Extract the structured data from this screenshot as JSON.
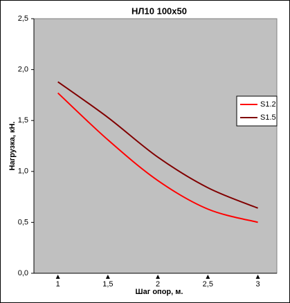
{
  "chart_data": {
    "type": "line",
    "title": "НЛ10 100x50",
    "x_label": "Шаг опор, м.",
    "y_label": "Нагрузка, кН.",
    "x": [
      1,
      1.5,
      2,
      2.5,
      3
    ],
    "series": [
      {
        "name": "S1.2",
        "color": "#ff0000",
        "values": [
          1.77,
          1.31,
          0.91,
          0.63,
          0.5
        ]
      },
      {
        "name": "S1.5",
        "color": "#800000",
        "values": [
          1.88,
          1.53,
          1.14,
          0.84,
          0.64
        ]
      }
    ],
    "xlim": [
      0.76,
      3.19
    ],
    "xticks": [
      1,
      {
        "value": 1.5,
        "label": "1,5"
      },
      2,
      {
        "value": 2.5,
        "label": "2,5"
      },
      3
    ],
    "ylim": [
      0,
      2.5
    ],
    "yticks": [
      {
        "value": 0,
        "label": "0,0"
      },
      {
        "value": 0.5,
        "label": "0,5"
      },
      {
        "value": 1,
        "label": "1,0"
      },
      {
        "value": 1.5,
        "label": "1,5"
      },
      {
        "value": 2,
        "label": "2,0"
      },
      {
        "value": 2.5,
        "label": "2,5"
      }
    ],
    "legend": "right",
    "plot_color": "#c0c0c0",
    "title_color": "#ff0000"
  }
}
